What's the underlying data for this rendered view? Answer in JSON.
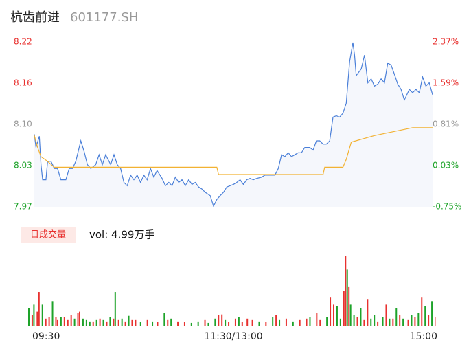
{
  "header": {
    "name": "杭齿前进",
    "code": "601177.SH"
  },
  "chart_data": [
    {
      "type": "line",
      "xlim": [
        0,
        240
      ],
      "xticks": [
        {
          "value": 0,
          "label": "09:30"
        },
        {
          "value": 120,
          "label": "11:30/13:00"
        },
        {
          "value": 240,
          "label": "15:00"
        }
      ],
      "ylim": [
        7.97,
        8.22
      ],
      "yticks": [
        7.97,
        {
          "value": 8.0325,
          "label": "8.03"
        },
        {
          "value": 8.095,
          "label": "8.10"
        },
        {
          "value": 8.1575,
          "label": "8.16"
        },
        8.22
      ],
      "y2lim": [
        -0.75,
        2.37
      ],
      "y2ticks": [
        {
          "value": -0.75,
          "label": "-0.75%"
        },
        {
          "value": 0.03,
          "label": "0.03%"
        },
        {
          "value": 0.81,
          "label": "0.81%"
        },
        {
          "value": 1.59,
          "label": "1.59%"
        },
        {
          "value": 2.37,
          "label": "2.37%"
        }
      ],
      "series": [
        {
          "color": "#4a7fd8",
          "x": [
            0,
            1,
            3,
            4,
            5,
            7,
            8,
            10,
            11,
            12,
            14,
            16,
            19,
            21,
            23,
            25,
            27,
            28,
            30,
            32,
            34,
            37,
            39,
            41,
            43,
            46,
            48,
            50,
            52,
            54,
            56,
            58,
            60,
            62,
            64,
            66,
            68,
            70,
            72,
            74,
            77,
            79,
            81,
            83,
            85,
            87,
            89,
            91,
            93,
            95,
            97,
            99,
            101,
            103,
            106,
            108,
            110,
            112,
            114,
            116,
            118,
            120,
            122,
            124,
            126,
            128,
            130,
            132,
            134,
            137,
            139,
            141,
            145,
            147,
            149,
            151,
            153,
            155,
            157,
            159,
            161,
            163,
            166,
            168,
            170,
            172,
            174,
            176,
            178,
            180,
            182,
            184,
            186,
            188,
            190,
            192,
            193,
            194,
            197,
            199,
            201,
            203,
            205,
            207,
            209,
            211,
            213,
            215,
            217,
            219,
            221,
            223,
            226,
            228,
            230,
            232,
            234,
            236,
            238,
            240
          ],
          "values": [
            8.08,
            8.06,
            8.077,
            8.034,
            8.011,
            8.011,
            8.039,
            8.039,
            8.034,
            8.028,
            8.028,
            8.011,
            8.011,
            8.028,
            8.028,
            8.039,
            8.06,
            8.07,
            8.054,
            8.034,
            8.028,
            8.034,
            8.049,
            8.034,
            8.049,
            8.034,
            8.049,
            8.034,
            8.028,
            8.007,
            8.002,
            8.018,
            8.011,
            8.018,
            8.007,
            8.018,
            8.011,
            8.028,
            8.015,
            8.025,
            8.013,
            8.002,
            8.007,
            8.002,
            8.015,
            8.007,
            8.011,
            8.002,
            8.011,
            8.004,
            8.007,
            8.0,
            7.997,
            7.992,
            7.987,
            7.971,
            7.981,
            7.987,
            7.992,
            8.0,
            8.002,
            8.004,
            8.007,
            8.011,
            8.004,
            8.011,
            8.013,
            8.011,
            8.013,
            8.015,
            8.018,
            8.018,
            8.018,
            8.028,
            8.049,
            8.046,
            8.052,
            8.046,
            8.049,
            8.052,
            8.052,
            8.06,
            8.06,
            8.056,
            8.07,
            8.07,
            8.065,
            8.065,
            8.07,
            8.106,
            8.108,
            8.106,
            8.112,
            8.127,
            8.19,
            8.219,
            8.2,
            8.169,
            8.179,
            8.2,
            8.158,
            8.164,
            8.153,
            8.156,
            8.164,
            8.158,
            8.188,
            8.185,
            8.171,
            8.156,
            8.148,
            8.132,
            8.148,
            8.143,
            8.148,
            8.143,
            8.167,
            8.153,
            8.158,
            8.14
          ]
        },
        {
          "color": "#f2b233",
          "x": [
            0,
            2,
            4,
            8,
            12,
            110,
            111,
            174,
            175,
            186,
            188,
            191,
            205,
            228,
            240
          ],
          "values": [
            8.078,
            8.06,
            8.046,
            8.039,
            8.03,
            8.03,
            8.019,
            8.019,
            8.03,
            8.03,
            8.042,
            8.068,
            8.078,
            8.09,
            8.09
          ]
        }
      ]
    },
    {
      "type": "bar",
      "label": "日成交量",
      "annotation": "vol: 4.99万手",
      "xlim": [
        0,
        240
      ],
      "ylim": [
        0,
        100
      ],
      "x": [
        0,
        2,
        3,
        5,
        6,
        8,
        10,
        12,
        14,
        16,
        17,
        19,
        21,
        23,
        25,
        27,
        29,
        30,
        32,
        34,
        36,
        38,
        40,
        42,
        44,
        46,
        48,
        50,
        51,
        53,
        55,
        57,
        59,
        61,
        63,
        66,
        70,
        73,
        76,
        80,
        82,
        84,
        88,
        92,
        96,
        100,
        104,
        106,
        110,
        112,
        114,
        116,
        118,
        122,
        124,
        126,
        129,
        132,
        136,
        140,
        144,
        146,
        148,
        152,
        156,
        160,
        164,
        166,
        170,
        172,
        176,
        178,
        180,
        182,
        184,
        186,
        187,
        188,
        189,
        190,
        192,
        194,
        196,
        198,
        200,
        202,
        204,
        206,
        209,
        211,
        213,
        215,
        217,
        219,
        221,
        224,
        226,
        228,
        230,
        232,
        234,
        236,
        238,
        240
      ],
      "values": [
        25,
        15,
        30,
        20,
        48,
        30,
        10,
        12,
        35,
        12,
        8,
        12,
        12,
        8,
        15,
        10,
        18,
        20,
        10,
        8,
        6,
        6,
        8,
        10,
        8,
        6,
        12,
        10,
        48,
        8,
        10,
        6,
        14,
        8,
        8,
        5,
        8,
        6,
        5,
        18,
        8,
        10,
        6,
        5,
        4,
        6,
        8,
        4,
        10,
        15,
        16,
        8,
        5,
        10,
        12,
        5,
        10,
        8,
        6,
        5,
        12,
        15,
        8,
        10,
        6,
        8,
        10,
        12,
        18,
        8,
        12,
        40,
        30,
        28,
        10,
        50,
        100,
        80,
        55,
        30,
        15,
        12,
        25,
        8,
        38,
        10,
        15,
        6,
        12,
        30,
        10,
        10,
        25,
        15,
        10,
        8,
        15,
        12,
        18,
        40,
        28,
        15,
        35,
        12
      ],
      "colors": [
        "#1ea32a",
        "#e8312f",
        "#1ea32a",
        "#e8312f",
        "#e8312f",
        "#1ea32a",
        "#e8312f",
        "#e8312f",
        "#1ea32a",
        "#e8312f",
        "#e8312f",
        "#1ea32a",
        "#e8312f",
        "#e8312f",
        "#e8312f",
        "#1ea32a",
        "#e8312f",
        "#e8312f",
        "#1ea32a",
        "#1ea32a",
        "#1ea32a",
        "#e8312f",
        "#1ea32a",
        "#e8312f",
        "#1ea32a",
        "#e8312f",
        "#1ea32a",
        "#e8312f",
        "#1ea32a",
        "#e8312f",
        "#1ea32a",
        "#e8312f",
        "#1ea32a",
        "#e8312f",
        "#e8312f",
        "#1ea32a",
        "#e8312f",
        "#1ea32a",
        "#e8312f",
        "#1ea32a",
        "#e8312f",
        "#1ea32a",
        "#e8312f",
        "#e8312f",
        "#1ea32a",
        "#1ea32a",
        "#e8312f",
        "#1ea32a",
        "#1ea32a",
        "#e8312f",
        "#e8312f",
        "#1ea32a",
        "#e8312f",
        "#e8312f",
        "#1ea32a",
        "#e8312f",
        "#e8312f",
        "#e8312f",
        "#1ea32a",
        "#e8312f",
        "#1ea32a",
        "#e8312f",
        "#1ea32a",
        "#e8312f",
        "#1ea32a",
        "#e8312f",
        "#e8312f",
        "#1ea32a",
        "#e8312f",
        "#e8312f",
        "#1ea32a",
        "#e8312f",
        "#e8312f",
        "#1ea32a",
        "#1ea32a",
        "#e8312f",
        "#e8312f",
        "#1ea32a",
        "#e8312f",
        "#1ea32a",
        "#1ea32a",
        "#e8312f",
        "#1ea32a",
        "#e8312f",
        "#e8312f",
        "#1ea32a",
        "#1ea32a",
        "#e8312f",
        "#1ea32a",
        "#e8312f",
        "#1ea32a",
        "#e8312f",
        "#1ea32a",
        "#e8312f",
        "#1ea32a",
        "#e8312f",
        "#1ea32a",
        "#e8312f",
        "#1ea32a",
        "#e8312f",
        "#1ea32a",
        "#e8312f",
        "#1ea32a",
        "#f4a0a0"
      ]
    }
  ]
}
